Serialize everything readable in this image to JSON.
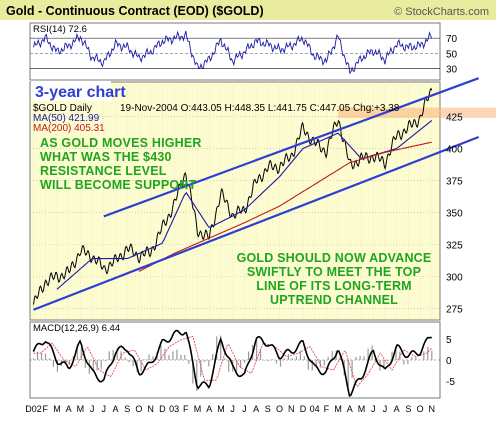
{
  "chart_data": {
    "type": "line",
    "title": "Gold - Continuous Contract (EOD) ($GOLD)",
    "watermark": "© StockCharts.com",
    "period_label": "3-year chart",
    "symbol_line": "$GOLD Daily",
    "quote": "19-Nov-2004 O:443.05 H:448.35 L:441.75 C:447.05 Chg:+3.38",
    "ma50_label": "MA(50) 421.99",
    "ma200_label": "MA(200) 405.31",
    "rsi_label": "RSI(14) 72.6",
    "macd_label": "MACD(12,26,9) 6.44",
    "annotations": {
      "support": [
        "AS GOLD MOVES HIGHER",
        "WHAT WAS THE $430",
        "RESISTANCE LEVEL",
        "WILL BECOME SUPPORT"
      ],
      "advance": [
        "GOLD SHOULD NOW ADVANCE",
        "SWIFTLY TO MEET THE TOP",
        "LINE OF ITS LONG-TERM",
        "UPTREND CHANNEL"
      ]
    },
    "price_axis": {
      "ticks": [
        275,
        300,
        325,
        350,
        375,
        400,
        425
      ],
      "ylim": [
        266,
        452
      ]
    },
    "rsi_axis": {
      "ticks": [
        70,
        50,
        30
      ],
      "ylim": [
        15,
        90
      ]
    },
    "macd_axis": {
      "ticks": [
        5,
        0,
        -5
      ],
      "ylim": [
        -9,
        9
      ]
    },
    "x_labels": [
      "D02",
      "F",
      "M",
      "A",
      "M",
      "J",
      "J",
      "A",
      "S",
      "O",
      "N",
      "D",
      "03",
      "F",
      "M",
      "A",
      "M",
      "J",
      "J",
      "A",
      "S",
      "O",
      "N",
      "D",
      "04",
      "F",
      "M",
      "A",
      "M",
      "J",
      "J",
      "A",
      "S",
      "O",
      "N"
    ],
    "close_monthly": [
      {
        "m": 0,
        "v": 278
      },
      {
        "m": 1,
        "v": 296
      },
      {
        "m": 2,
        "v": 300
      },
      {
        "m": 3,
        "v": 303
      },
      {
        "m": 4,
        "v": 320
      },
      {
        "m": 5,
        "v": 316
      },
      {
        "m": 6,
        "v": 306
      },
      {
        "m": 7,
        "v": 312
      },
      {
        "m": 8,
        "v": 322
      },
      {
        "m": 9,
        "v": 316
      },
      {
        "m": 10,
        "v": 319
      },
      {
        "m": 11,
        "v": 338
      },
      {
        "m": 12,
        "v": 356
      },
      {
        "m": 13,
        "v": 382
      },
      {
        "m": 14,
        "v": 336
      },
      {
        "m": 15,
        "v": 330
      },
      {
        "m": 16,
        "v": 365
      },
      {
        "m": 17,
        "v": 348
      },
      {
        "m": 18,
        "v": 352
      },
      {
        "m": 19,
        "v": 374
      },
      {
        "m": 20,
        "v": 385
      },
      {
        "m": 21,
        "v": 386
      },
      {
        "m": 22,
        "v": 394
      },
      {
        "m": 23,
        "v": 416
      },
      {
        "m": 24,
        "v": 404
      },
      {
        "m": 25,
        "v": 398
      },
      {
        "m": 26,
        "v": 424
      },
      {
        "m": 27,
        "v": 387
      },
      {
        "m": 28,
        "v": 392
      },
      {
        "m": 29,
        "v": 394
      },
      {
        "m": 30,
        "v": 389
      },
      {
        "m": 31,
        "v": 410
      },
      {
        "m": 32,
        "v": 416
      },
      {
        "m": 33,
        "v": 424
      },
      {
        "m": 34,
        "v": 447
      }
    ],
    "ma50": [
      {
        "m": 2,
        "v": 290
      },
      {
        "m": 5,
        "v": 314
      },
      {
        "m": 8,
        "v": 314
      },
      {
        "m": 11,
        "v": 326
      },
      {
        "m": 13,
        "v": 366
      },
      {
        "m": 15,
        "v": 338
      },
      {
        "m": 18,
        "v": 352
      },
      {
        "m": 21,
        "v": 378
      },
      {
        "m": 23,
        "v": 400
      },
      {
        "m": 26,
        "v": 412
      },
      {
        "m": 28,
        "v": 392
      },
      {
        "m": 31,
        "v": 400
      },
      {
        "m": 34,
        "v": 422
      }
    ],
    "ma200": [
      {
        "m": 9,
        "v": 304
      },
      {
        "m": 12,
        "v": 318
      },
      {
        "m": 15,
        "v": 330
      },
      {
        "m": 18,
        "v": 342
      },
      {
        "m": 21,
        "v": 355
      },
      {
        "m": 24,
        "v": 372
      },
      {
        "m": 27,
        "v": 389
      },
      {
        "m": 30,
        "v": 397
      },
      {
        "m": 34,
        "v": 405
      }
    ],
    "rsi_monthly": [
      58,
      70,
      52,
      60,
      72,
      45,
      38,
      62,
      58,
      44,
      52,
      66,
      70,
      74,
      30,
      42,
      68,
      40,
      52,
      66,
      62,
      55,
      60,
      70,
      46,
      40,
      72,
      25,
      44,
      54,
      42,
      62,
      58,
      60,
      73
    ],
    "macd_monthly": [
      2,
      5,
      0,
      -2,
      4,
      -3,
      -5,
      2,
      3,
      -3,
      -1,
      4,
      6,
      7,
      -6,
      -6,
      5,
      -2,
      -4,
      5,
      4,
      1,
      2,
      4,
      -2,
      -3,
      3,
      -8,
      -4,
      2,
      -3,
      3,
      1,
      2,
      6
    ],
    "channel": {
      "upper": [
        {
          "m": 6,
          "v": 347
        },
        {
          "m": 38,
          "v": 455
        }
      ],
      "lower": [
        {
          "m": 0,
          "v": 274
        },
        {
          "m": 38,
          "v": 409
        }
      ],
      "resistance_zone": [
        424,
        432
      ]
    },
    "colors": {
      "title_bar": "#e9eb9f",
      "price_panel": "#fdfbd0",
      "price_line": "#000000",
      "ma50": "#1a1aa6",
      "ma200": "#c21b1b",
      "channel": "#2f3fcf",
      "annotation": "#1fa51f",
      "resistance": "#f8b27a",
      "rsi_line": "#1a1aa6",
      "macd_line": "#000000",
      "macd_signal": "#e05050"
    }
  }
}
